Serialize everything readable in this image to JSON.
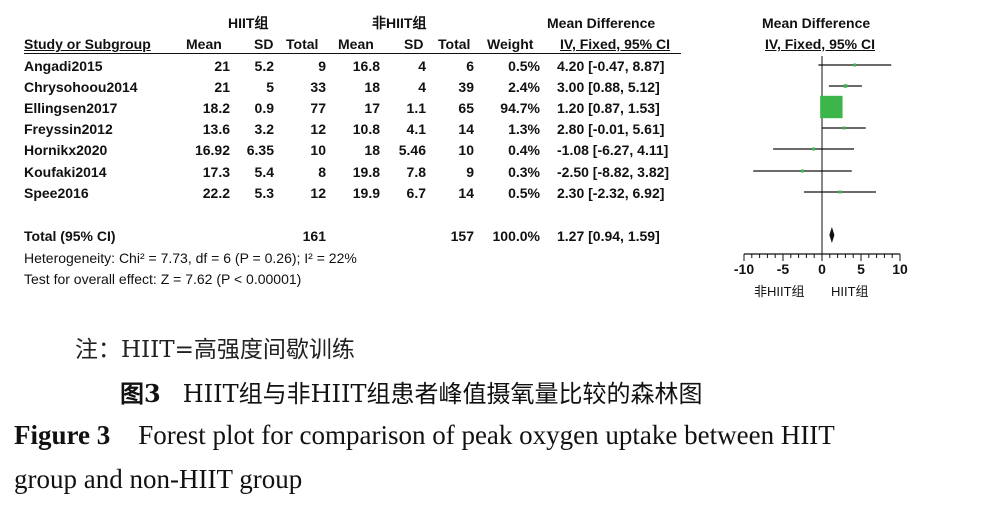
{
  "table": {
    "group_hiit": "HIIT组",
    "group_non_hiit": "非HIIT组",
    "mean_difference": "Mean Difference",
    "col_study": "Study or Subgroup",
    "col_mean": "Mean",
    "col_sd": "SD",
    "col_total": "Total",
    "col_weight": "Weight",
    "col_ci": "IV, Fixed, 95% CI",
    "rows": [
      {
        "study": "Angadi2015",
        "mean1": "21",
        "sd1": "5.2",
        "n1": "9",
        "mean2": "16.8",
        "sd2": "4",
        "n2": "6",
        "weight": "0.5%",
        "ci": "4.20 [-0.47, 8.87]"
      },
      {
        "study": "Chrysohoou2014",
        "mean1": "21",
        "sd1": "5",
        "n1": "33",
        "mean2": "18",
        "sd2": "4",
        "n2": "39",
        "weight": "2.4%",
        "ci": "3.00 [0.88, 5.12]"
      },
      {
        "study": "Ellingsen2017",
        "mean1": "18.2",
        "sd1": "0.9",
        "n1": "77",
        "mean2": "17",
        "sd2": "1.1",
        "n2": "65",
        "weight": "94.7%",
        "ci": "1.20 [0.87, 1.53]"
      },
      {
        "study": "Freyssin2012",
        "mean1": "13.6",
        "sd1": "3.2",
        "n1": "12",
        "mean2": "10.8",
        "sd2": "4.1",
        "n2": "14",
        "weight": "1.3%",
        "ci": "2.80 [-0.01, 5.61]"
      },
      {
        "study": "Hornikx2020",
        "mean1": "16.92",
        "sd1": "6.35",
        "n1": "10",
        "mean2": "18",
        "sd2": "5.46",
        "n2": "10",
        "weight": "0.4%",
        "ci": "-1.08 [-6.27, 4.11]"
      },
      {
        "study": "Koufaki2014",
        "mean1": "17.3",
        "sd1": "5.4",
        "n1": "8",
        "mean2": "19.8",
        "sd2": "7.8",
        "n2": "9",
        "weight": "0.3%",
        "ci": "-2.50 [-8.82, 3.82]"
      },
      {
        "study": "Spee2016",
        "mean1": "22.2",
        "sd1": "5.3",
        "n1": "12",
        "mean2": "19.9",
        "sd2": "6.7",
        "n2": "14",
        "weight": "0.5%",
        "ci": "2.30 [-2.32, 6.92]"
      }
    ],
    "total": {
      "label": "Total (95% CI)",
      "n1": "161",
      "n2": "157",
      "weight": "100.0%",
      "ci": "1.27 [0.94, 1.59]"
    },
    "heterogeneity": "Heterogeneity: Chi² = 7.73, df = 6 (P = 0.26); I² = 22%",
    "overall_effect": "Test for overall effect: Z = 7.62 (P < 0.00001)"
  },
  "chart_data": {
    "type": "forest",
    "x_ticks": [
      "-10",
      "-5",
      "0",
      "5",
      "10"
    ],
    "xlim": [
      -10,
      10
    ],
    "favours_left": "非HIIT组",
    "favours_right": "HIIT组",
    "studies": [
      {
        "name": "Angadi2015",
        "md": 4.2,
        "lo": -0.47,
        "hi": 8.87,
        "weight": 0.5
      },
      {
        "name": "Chrysohoou2014",
        "md": 3.0,
        "lo": 0.88,
        "hi": 5.12,
        "weight": 2.4
      },
      {
        "name": "Ellingsen2017",
        "md": 1.2,
        "lo": 0.87,
        "hi": 1.53,
        "weight": 94.7
      },
      {
        "name": "Freyssin2012",
        "md": 2.8,
        "lo": -0.01,
        "hi": 5.61,
        "weight": 1.3
      },
      {
        "name": "Hornikx2020",
        "md": -1.08,
        "lo": -6.27,
        "hi": 4.11,
        "weight": 0.4
      },
      {
        "name": "Koufaki2014",
        "md": -2.5,
        "lo": -8.82,
        "hi": 3.82,
        "weight": 0.3
      },
      {
        "name": "Spee2016",
        "md": 2.3,
        "lo": -2.32,
        "hi": 6.92,
        "weight": 0.5
      }
    ],
    "overall": {
      "md": 1.27,
      "lo": 0.94,
      "hi": 1.59
    },
    "colors": {
      "square": "#3cb64b",
      "line": "#111111"
    }
  },
  "caption": {
    "note": "注：HIIT=高强度间歇训练",
    "zh_label": "图3",
    "zh_title": "HIIT组与非HIIT组患者峰值摄氧量比较的森林图",
    "en_label": "Figure 3",
    "en_title_line1": "Forest plot for comparison of peak oxygen uptake between HIIT",
    "en_title_line2": "group and non-HIIT group"
  }
}
